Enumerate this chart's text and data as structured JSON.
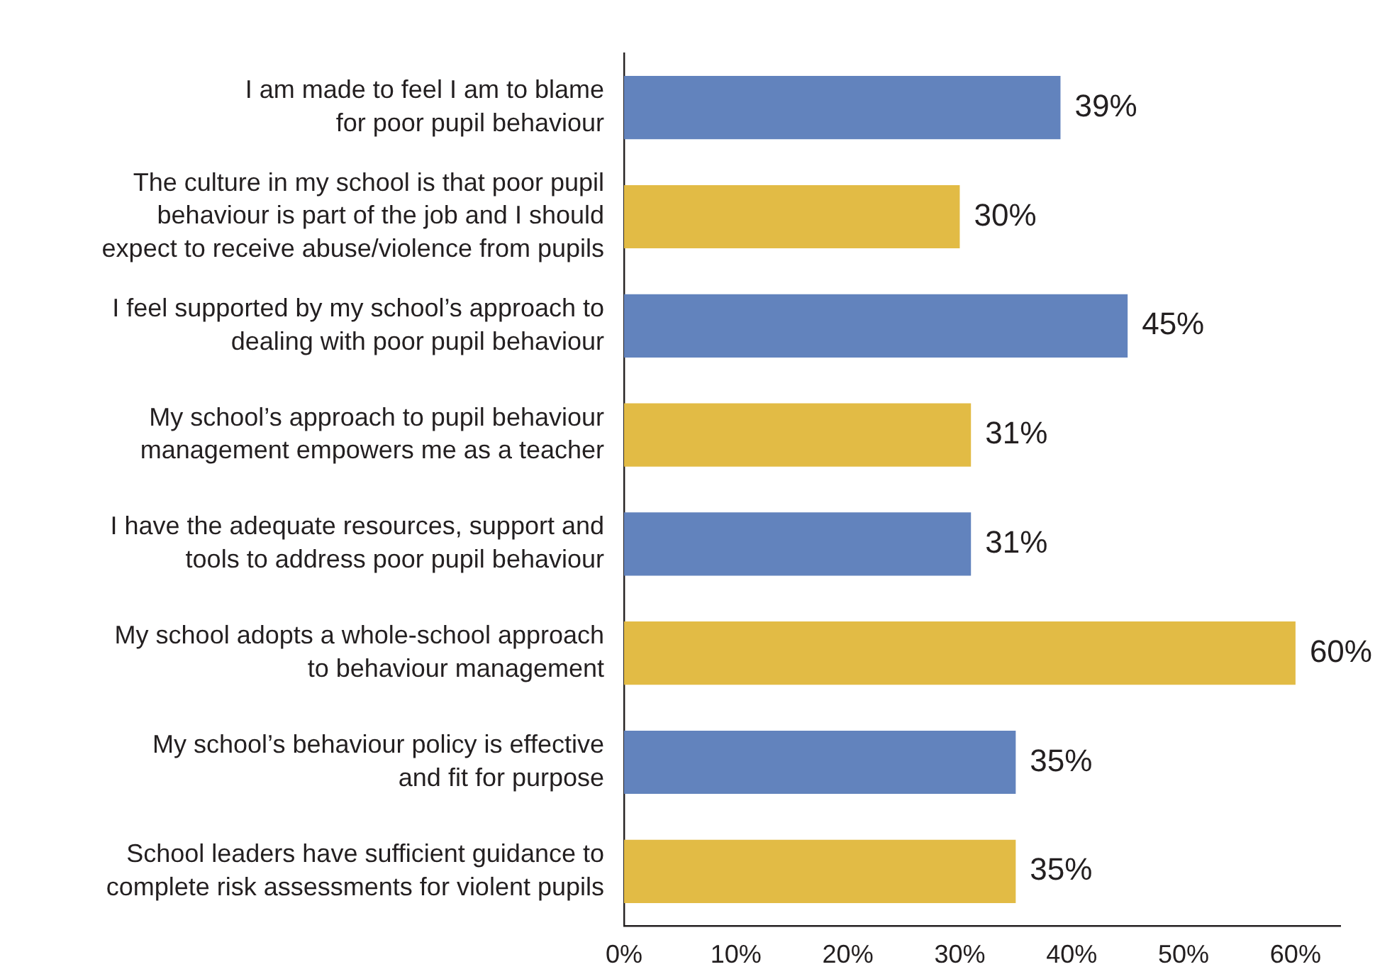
{
  "chart_data": {
    "type": "bar",
    "orientation": "horizontal",
    "categories": [
      "I am made to feel I am to blame\nfor poor pupil behaviour",
      "The culture in my school is that poor pupil\nbehaviour is part of the job and I should\nexpect to receive abuse/violence from pupils",
      "I feel supported by my school’s approach to\ndealing with poor pupil behaviour",
      "My school’s approach to pupil behaviour\nmanagement empowers me as a teacher",
      "I have the adequate resources, support and\ntools to address poor pupil behaviour",
      "My school adopts a whole-school approach\nto behaviour management",
      "My school’s behaviour policy is effective\nand fit for purpose",
      "School leaders have sufficient guidance to\ncomplete risk assessments for violent pupils"
    ],
    "values": [
      39,
      30,
      45,
      31,
      31,
      60,
      35,
      35
    ],
    "colors": [
      "#6283bd",
      "#e2bb45",
      "#6283bd",
      "#e2bb45",
      "#6283bd",
      "#e2bb45",
      "#6283bd",
      "#e2bb45"
    ],
    "value_labels": [
      "39%",
      "30%",
      "45%",
      "31%",
      "31%",
      "60%",
      "35%",
      "35%"
    ],
    "xlim": [
      0,
      64
    ],
    "xticks": [
      {
        "value": 0,
        "label": "0%"
      },
      {
        "value": 10,
        "label": "10%"
      },
      {
        "value": 20,
        "label": "20%"
      },
      {
        "value": 30,
        "label": "30%"
      },
      {
        "value": 40,
        "label": "40%"
      },
      {
        "value": 50,
        "label": "50%"
      },
      {
        "value": 60,
        "label": "60%"
      }
    ],
    "grid": false,
    "legend": false
  }
}
